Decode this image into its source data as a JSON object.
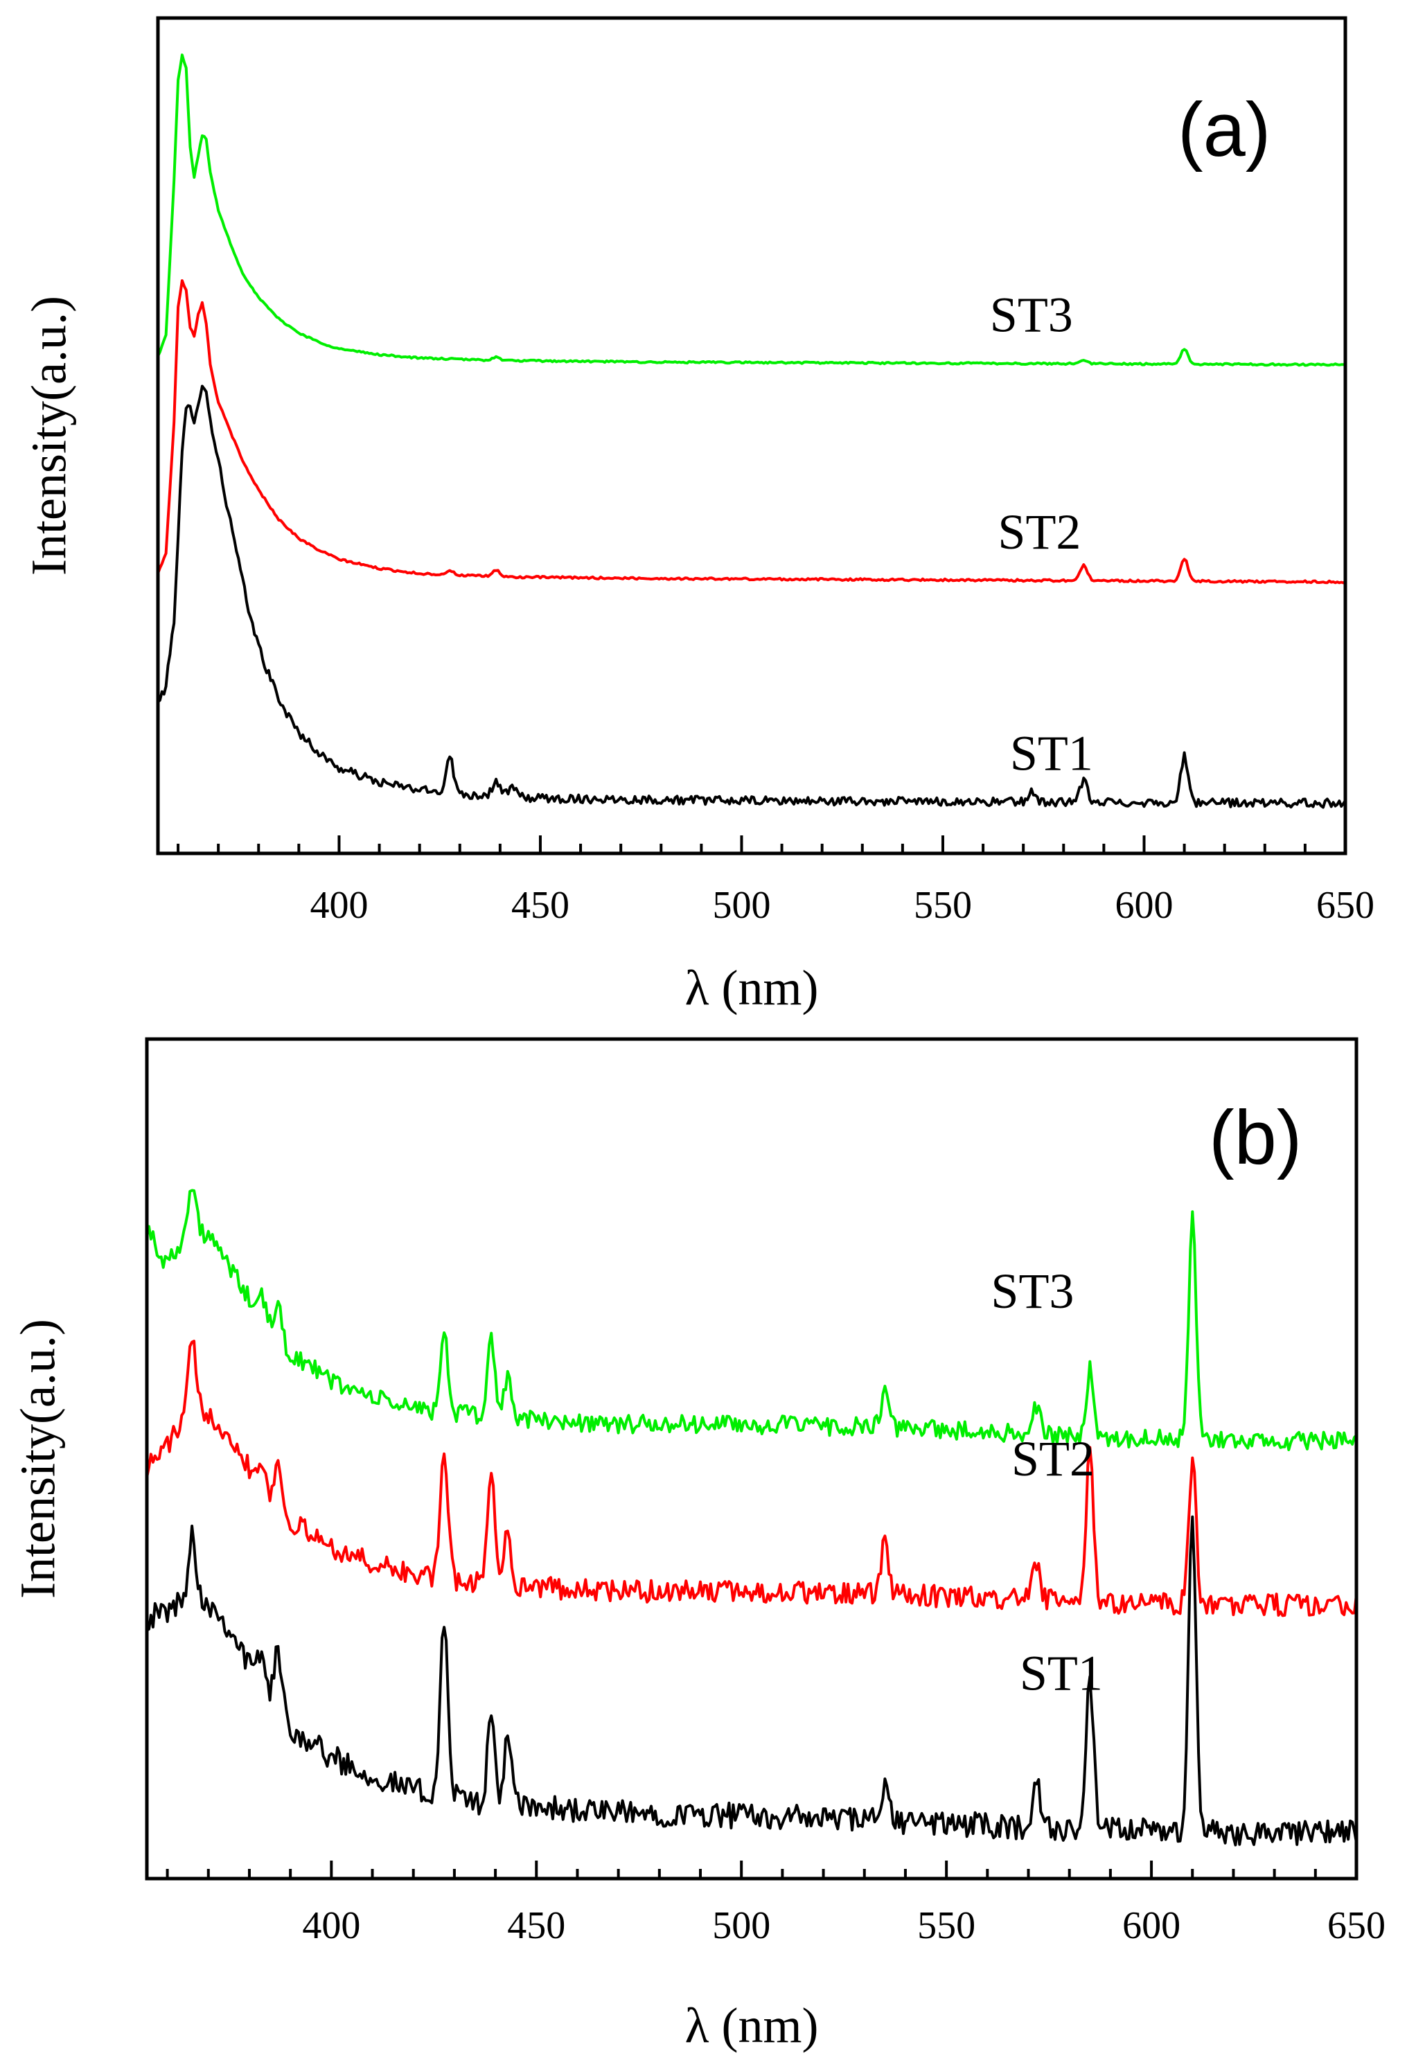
{
  "chart_data": [
    {
      "panel": "(a)",
      "type": "line",
      "xlabel": "λ (nm)",
      "ylabel": "Intensity(a.u.)",
      "xlim": [
        355,
        650
      ],
      "ylim": [
        0,
        10
      ],
      "x_ticks": [
        400,
        450,
        500,
        550,
        600,
        650
      ],
      "x_tick_labels": [
        "400",
        "450",
        "500",
        "550",
        "600",
        "650"
      ],
      "grid": false,
      "series": [
        {
          "name": "ST1",
          "color": "#000000",
          "offset": 0.6,
          "baseline": 0.0,
          "noise": 0.05,
          "points": [
            [
              355,
              1.2
            ],
            [
              357,
              1.4
            ],
            [
              359,
              2.2
            ],
            [
              361,
              4.2
            ],
            [
              362,
              4.7
            ],
            [
              363,
              4.75
            ],
            [
              364,
              4.6
            ],
            [
              365,
              4.8
            ],
            [
              366,
              5.0
            ],
            [
              367,
              4.9
            ],
            [
              368,
              4.6
            ],
            [
              370,
              4.1
            ],
            [
              372,
              3.6
            ],
            [
              375,
              2.9
            ],
            [
              378,
              2.2
            ],
            [
              382,
              1.6
            ],
            [
              386,
              1.15
            ],
            [
              390,
              0.85
            ],
            [
              395,
              0.6
            ],
            [
              400,
              0.42
            ],
            [
              410,
              0.25
            ],
            [
              420,
              0.16
            ],
            [
              430,
              0.11
            ],
            [
              450,
              0.06
            ],
            [
              500,
              0.03
            ],
            [
              650,
              0.0
            ]
          ],
          "peaks": [
            [
              427.5,
              0.45
            ],
            [
              439,
              0.18
            ],
            [
              443,
              0.12
            ],
            [
              572,
              0.12
            ],
            [
              585,
              0.25
            ],
            [
              610,
              0.55
            ]
          ]
        },
        {
          "name": "ST2",
          "color": "#ff0000",
          "offset": 3.25,
          "baseline": 0.0,
          "noise": 0.012,
          "points": [
            [
              355,
              0.1
            ],
            [
              357,
              0.35
            ],
            [
              359,
              1.9
            ],
            [
              360,
              3.3
            ],
            [
              361,
              3.6
            ],
            [
              362,
              3.5
            ],
            [
              363,
              3.05
            ],
            [
              364,
              2.95
            ],
            [
              365,
              3.2
            ],
            [
              366,
              3.35
            ],
            [
              367,
              3.1
            ],
            [
              368,
              2.6
            ],
            [
              370,
              2.15
            ],
            [
              373,
              1.8
            ],
            [
              376,
              1.45
            ],
            [
              380,
              1.1
            ],
            [
              385,
              0.75
            ],
            [
              390,
              0.52
            ],
            [
              395,
              0.38
            ],
            [
              400,
              0.27
            ],
            [
              410,
              0.16
            ],
            [
              420,
              0.1
            ],
            [
              440,
              0.06
            ],
            [
              480,
              0.04
            ],
            [
              650,
              0.0
            ]
          ],
          "peaks": [
            [
              427.5,
              0.05
            ],
            [
              439,
              0.08
            ],
            [
              585,
              0.18
            ],
            [
              610,
              0.27
            ]
          ]
        },
        {
          "name": "ST3",
          "color": "#00ee00",
          "offset": 5.85,
          "baseline": 0.0,
          "noise": 0.01,
          "points": [
            [
              355,
              0.1
            ],
            [
              357,
              0.35
            ],
            [
              359,
              2.2
            ],
            [
              360,
              3.4
            ],
            [
              361,
              3.7
            ],
            [
              362,
              3.55
            ],
            [
              363,
              2.6
            ],
            [
              364,
              2.25
            ],
            [
              365,
              2.5
            ],
            [
              366,
              2.75
            ],
            [
              367,
              2.7
            ],
            [
              368,
              2.3
            ],
            [
              370,
              1.85
            ],
            [
              373,
              1.45
            ],
            [
              376,
              1.1
            ],
            [
              380,
              0.8
            ],
            [
              385,
              0.55
            ],
            [
              390,
              0.38
            ],
            [
              395,
              0.27
            ],
            [
              400,
              0.19
            ],
            [
              410,
              0.12
            ],
            [
              420,
              0.08
            ],
            [
              440,
              0.05
            ],
            [
              480,
              0.03
            ],
            [
              650,
              0.0
            ]
          ],
          "peaks": [
            [
              439,
              0.04
            ],
            [
              585,
              0.05
            ],
            [
              610,
              0.18
            ]
          ]
        }
      ],
      "annotations": [
        {
          "text": "ST1",
          "x": 577,
          "y": 1.0
        },
        {
          "text": "ST2",
          "x": 574,
          "y": 3.65
        },
        {
          "text": "ST3",
          "x": 572,
          "y": 6.25
        }
      ],
      "label_text": "(a)"
    },
    {
      "panel": "(b)",
      "type": "line",
      "xlabel": "λ (nm)",
      "ylabel": "Intensity(a.u.)",
      "xlim": [
        355,
        650
      ],
      "ylim": [
        0,
        10
      ],
      "x_ticks": [
        400,
        450,
        500,
        550,
        600,
        650
      ],
      "x_tick_labels": [
        "400",
        "450",
        "500",
        "550",
        "600",
        "650"
      ],
      "grid": false,
      "series": [
        {
          "name": "ST1",
          "color": "#000000",
          "offset": 0.5,
          "baseline": 0.0,
          "noise": 0.15,
          "points": [
            [
              355,
              2.6
            ],
            [
              358,
              2.65
            ],
            [
              362,
              2.75
            ],
            [
              366,
              2.85
            ],
            [
              370,
              2.8
            ],
            [
              375,
              2.5
            ],
            [
              380,
              2.05
            ],
            [
              385,
              1.65
            ],
            [
              390,
              1.3
            ],
            [
              400,
              0.95
            ],
            [
              410,
              0.72
            ],
            [
              420,
              0.55
            ],
            [
              440,
              0.38
            ],
            [
              470,
              0.28
            ],
            [
              500,
              0.25
            ],
            [
              540,
              0.18
            ],
            [
              580,
              0.08
            ],
            [
              620,
              0.05
            ],
            [
              650,
              0.05
            ]
          ],
          "peaks": [
            [
              366,
              0.8
            ],
            [
              383,
              0.4
            ],
            [
              387,
              0.7
            ],
            [
              427.5,
              2.15
            ],
            [
              439,
              1.0
            ],
            [
              443,
              0.8
            ],
            [
              535,
              0.4
            ],
            [
              572,
              0.6
            ],
            [
              585,
              1.75
            ],
            [
              610,
              3.75
            ]
          ]
        },
        {
          "name": "ST2",
          "color": "#ff0000",
          "offset": 3.2,
          "baseline": 0.0,
          "noise": 0.13,
          "points": [
            [
              355,
              1.7
            ],
            [
              358,
              1.85
            ],
            [
              362,
              2.1
            ],
            [
              366,
              2.4
            ],
            [
              370,
              2.35
            ],
            [
              375,
              2.1
            ],
            [
              380,
              1.7
            ],
            [
              385,
              1.35
            ],
            [
              390,
              1.05
            ],
            [
              400,
              0.75
            ],
            [
              410,
              0.55
            ],
            [
              420,
              0.42
            ],
            [
              440,
              0.3
            ],
            [
              470,
              0.22
            ],
            [
              500,
              0.22
            ],
            [
              540,
              0.18
            ],
            [
              580,
              0.1
            ],
            [
              620,
              0.06
            ],
            [
              650,
              0.06
            ]
          ],
          "peaks": [
            [
              366,
              0.8
            ],
            [
              383,
              0.3
            ],
            [
              387,
              0.5
            ],
            [
              427.5,
              1.55
            ],
            [
              439,
              1.4
            ],
            [
              443,
              0.6
            ],
            [
              535,
              0.6
            ],
            [
              572,
              0.45
            ],
            [
              585,
              1.75
            ],
            [
              610,
              1.7
            ]
          ]
        },
        {
          "name": "ST3",
          "color": "#00ee00",
          "offset": 5.15,
          "baseline": 0.0,
          "noise": 0.11,
          "points": [
            [
              355,
              2.6
            ],
            [
              357,
              2.45
            ],
            [
              359,
              2.15
            ],
            [
              362,
              2.35
            ],
            [
              366,
              2.6
            ],
            [
              370,
              2.5
            ],
            [
              375,
              2.15
            ],
            [
              380,
              1.75
            ],
            [
              385,
              1.4
            ],
            [
              390,
              1.1
            ],
            [
              400,
              0.78
            ],
            [
              410,
              0.58
            ],
            [
              420,
              0.45
            ],
            [
              440,
              0.34
            ],
            [
              470,
              0.26
            ],
            [
              500,
              0.26
            ],
            [
              540,
              0.22
            ],
            [
              580,
              0.12
            ],
            [
              620,
              0.06
            ],
            [
              650,
              0.06
            ]
          ],
          "peaks": [
            [
              366,
              0.5
            ],
            [
              383,
              0.25
            ],
            [
              387,
              0.4
            ],
            [
              427.5,
              0.95
            ],
            [
              439,
              0.95
            ],
            [
              443,
              0.5
            ],
            [
              535,
              0.4
            ],
            [
              572,
              0.35
            ],
            [
              585,
              0.8
            ],
            [
              610,
              2.65
            ]
          ]
        }
      ],
      "annotations": [
        {
          "text": "ST1",
          "x": 578,
          "y": 2.25
        },
        {
          "text": "ST2",
          "x": 576,
          "y": 4.8
        },
        {
          "text": "ST3",
          "x": 571,
          "y": 6.8
        }
      ],
      "label_text": "(b)"
    }
  ]
}
